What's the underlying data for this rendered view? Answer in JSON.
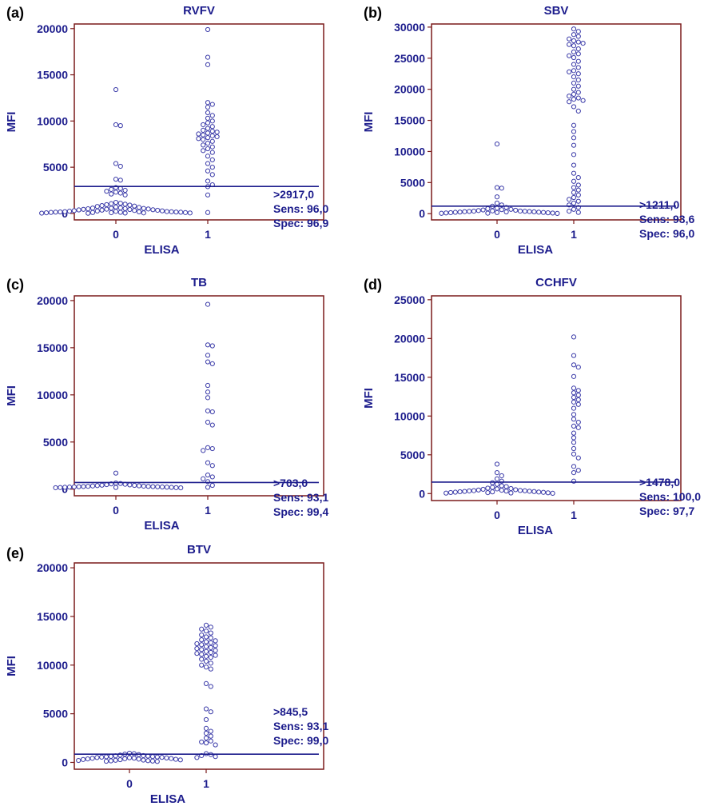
{
  "colors": {
    "frame": "#7a1a1a",
    "ink": "#1c1c8c",
    "point": "#3a3aa8"
  },
  "chart_data": [
    {
      "type": "scatter",
      "panel": "(a)",
      "title": "RVFV",
      "xlabel": "ELISA",
      "ylabel": "MFI",
      "categories": [
        "0",
        "1"
      ],
      "yticks": [
        0,
        5000,
        10000,
        15000,
        20000
      ],
      "ylim": [
        -700,
        20500
      ],
      "cutoff": 2917,
      "annotation": [
        ">2917,0",
        "Sens: 96,0",
        "Spec: 96,9"
      ],
      "series": [
        {
          "category": "0",
          "values": [
            13400,
            9600,
            9500,
            5400,
            5100,
            3700,
            3600,
            2800,
            2700,
            2600,
            2500,
            2400,
            2300,
            2200,
            2100,
            2000,
            1200,
            1100,
            1050,
            1000,
            950,
            900,
            850,
            800,
            750,
            700,
            650,
            600,
            580,
            560,
            540,
            520,
            500,
            480,
            460,
            440,
            420,
            400,
            380,
            360,
            340,
            320,
            300,
            280,
            260,
            240,
            220,
            200,
            190,
            180,
            170,
            160,
            150,
            140,
            130,
            120,
            110,
            100,
            90,
            80,
            70,
            60,
            50,
            40,
            30,
            20
          ]
        },
        {
          "category": "1",
          "values": [
            19900,
            16900,
            16100,
            12000,
            11800,
            11500,
            10900,
            10600,
            10300,
            10000,
            9800,
            9600,
            9400,
            9200,
            9000,
            8900,
            8800,
            8700,
            8600,
            8500,
            8400,
            8300,
            8200,
            8100,
            8000,
            7800,
            7600,
            7400,
            7200,
            7000,
            6800,
            6600,
            6200,
            5800,
            5400,
            5000,
            4600,
            4200,
            3500,
            3100,
            2900,
            2000,
            100
          ]
        }
      ]
    },
    {
      "type": "scatter",
      "panel": "(b)",
      "title": "SBV",
      "xlabel": "ELISA",
      "ylabel": "MFI",
      "categories": [
        "0",
        "1"
      ],
      "yticks": [
        0,
        5000,
        10000,
        15000,
        20000,
        25000,
        30000
      ],
      "ylim": [
        -1000,
        30500
      ],
      "cutoff": 1211,
      "annotation": [
        ">1211,0",
        "Sens: 93,6",
        "Spec: 96,0"
      ],
      "series": [
        {
          "category": "0",
          "values": [
            11200,
            4200,
            4100,
            2700,
            1700,
            1400,
            1200,
            1000,
            900,
            800,
            700,
            650,
            600,
            550,
            500,
            450,
            420,
            400,
            380,
            360,
            340,
            320,
            300,
            280,
            260,
            240,
            220,
            200,
            180,
            160,
            140,
            120,
            100,
            80,
            60,
            40
          ]
        },
        {
          "category": "1",
          "values": [
            29700,
            29300,
            28800,
            28500,
            28100,
            27800,
            27600,
            27400,
            27200,
            27000,
            26500,
            26000,
            25700,
            25400,
            25100,
            24500,
            24000,
            23500,
            23000,
            22800,
            22500,
            22000,
            21500,
            21000,
            20500,
            20000,
            19500,
            19200,
            18900,
            18600,
            18400,
            18200,
            18000,
            17200,
            16500,
            14200,
            13200,
            12200,
            11000,
            9500,
            7800,
            6500,
            5800,
            5200,
            4600,
            4200,
            3800,
            3400,
            3000,
            2600,
            2300,
            2000,
            1700,
            1400,
            1000,
            700,
            400,
            200
          ]
        }
      ]
    },
    {
      "type": "scatter",
      "panel": "(c)",
      "title": "TB",
      "xlabel": "ELISA",
      "ylabel": "MFI",
      "categories": [
        "0",
        "1"
      ],
      "yticks": [
        0,
        5000,
        10000,
        15000,
        20000
      ],
      "ylim": [
        -700,
        20500
      ],
      "cutoff": 703,
      "annotation": [
        ">703,0",
        "Sens: 93,1",
        "Spec: 99,4"
      ],
      "series": [
        {
          "category": "0",
          "values": [
            1700,
            650,
            600,
            560,
            520,
            480,
            450,
            420,
            400,
            380,
            360,
            340,
            320,
            300,
            290,
            280,
            270,
            260,
            250,
            240,
            230,
            220,
            210,
            200,
            190,
            180,
            170,
            160,
            150,
            140
          ]
        },
        {
          "category": "1",
          "values": [
            19600,
            15300,
            15200,
            14200,
            13500,
            13300,
            11000,
            10300,
            9700,
            8300,
            8200,
            7100,
            6800,
            4400,
            4300,
            4100,
            2800,
            2500,
            1500,
            1300,
            1100,
            800,
            400,
            200
          ]
        }
      ]
    },
    {
      "type": "scatter",
      "panel": "(d)",
      "title": "CCHFV",
      "xlabel": "ELISA",
      "ylabel": "MFI",
      "categories": [
        "0",
        "1"
      ],
      "yticks": [
        0,
        5000,
        10000,
        15000,
        20000,
        25000
      ],
      "ylim": [
        -900,
        25500
      ],
      "cutoff": 1478,
      "annotation": [
        ">1478,0",
        "Sens: 100,0",
        "Spec: 97,7"
      ],
      "series": [
        {
          "category": "0",
          "values": [
            3800,
            2700,
            2300,
            1900,
            1600,
            1400,
            1200,
            1000,
            900,
            800,
            700,
            650,
            600,
            550,
            500,
            460,
            430,
            400,
            380,
            360,
            340,
            320,
            300,
            280,
            260,
            240,
            220,
            200,
            180,
            160,
            140,
            120,
            100,
            80,
            60,
            40
          ]
        },
        {
          "category": "1",
          "values": [
            20200,
            17800,
            16600,
            16300,
            15100,
            13600,
            13300,
            13000,
            12700,
            12400,
            12100,
            11800,
            11500,
            11000,
            10200,
            9600,
            9200,
            8700,
            8500,
            7800,
            7200,
            6600,
            5800,
            5100,
            4600,
            3500,
            3000,
            2700,
            1600
          ]
        }
      ]
    },
    {
      "type": "scatter",
      "panel": "(e)",
      "title": "BTV",
      "xlabel": "ELISA",
      "ylabel": "MFI",
      "categories": [
        "0",
        "1"
      ],
      "yticks": [
        0,
        5000,
        10000,
        15000,
        20000
      ],
      "ylim": [
        -700,
        20500
      ],
      "cutoff": 845.5,
      "annotation": [
        ">845,5",
        "Sens: 93,1",
        "Spec: 99,0"
      ],
      "series": [
        {
          "category": "0",
          "values": [
            950,
            900,
            850,
            800,
            750,
            700,
            680,
            650,
            620,
            600,
            580,
            560,
            540,
            520,
            500,
            480,
            460,
            440,
            420,
            400,
            380,
            360,
            340,
            320,
            300,
            280,
            260,
            240,
            220,
            200,
            180,
            160,
            140,
            120,
            100
          ]
        },
        {
          "category": "1",
          "values": [
            14100,
            13900,
            13700,
            13500,
            13300,
            13100,
            12900,
            12800,
            12600,
            12500,
            12400,
            12300,
            12200,
            12100,
            12000,
            11900,
            11800,
            11700,
            11600,
            11500,
            11400,
            11300,
            11200,
            11100,
            11000,
            10900,
            10800,
            10600,
            10400,
            10200,
            10000,
            9800,
            9600,
            8100,
            7800,
            5500,
            5200,
            4400,
            3500,
            3200,
            3000,
            2700,
            2500,
            2200,
            2100,
            2000,
            1800,
            900,
            800,
            700,
            600,
            500
          ]
        }
      ]
    }
  ]
}
